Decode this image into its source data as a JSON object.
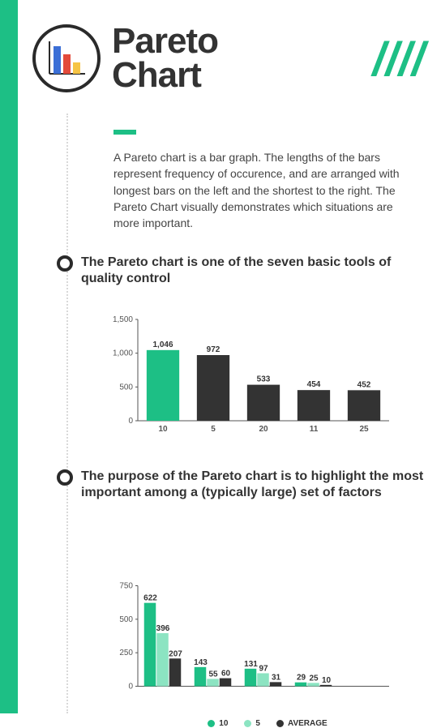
{
  "header": {
    "title_line1": "Pareto",
    "title_line2": "Chart",
    "slashes": "////",
    "logo_bars": [
      {
        "color": "#3b6fd6",
        "h": 34
      },
      {
        "color": "#e34a3b",
        "h": 24
      },
      {
        "color": "#f6c445",
        "h": 14
      }
    ]
  },
  "colors": {
    "accent": "#1dbf85",
    "accent_light": "#8ce4c2",
    "dark": "#2a2a2a",
    "text": "#444444",
    "bar_dark": "#333333"
  },
  "intro": {
    "text": "A Pareto chart is a bar graph. The lengths of the bars represent frequency of occurence, and are arranged with longest bars on the left and the shortest to the right. The Pareto Chart visually demonstrates which situations are more important."
  },
  "section1": {
    "title": "The Pareto chart is one of the seven basic tools of quality control",
    "chart": {
      "type": "bar",
      "ylim": [
        0,
        1500
      ],
      "ytick_step": 500,
      "categories": [
        "10",
        "5",
        "20",
        "11",
        "25"
      ],
      "values": [
        1046,
        972,
        533,
        454,
        452
      ],
      "value_labels": [
        "1,046",
        "972",
        "533",
        "454",
        "452"
      ],
      "bar_colors": [
        "#1dbf85",
        "#333333",
        "#333333",
        "#333333",
        "#333333"
      ],
      "bar_width": 0.65,
      "label_fontsize": 10
    }
  },
  "section2": {
    "title": "The purpose of the Pareto chart is to highlight the most important among a (typically large) set of factors",
    "chart": {
      "type": "grouped-bar",
      "ylim": [
        0,
        750
      ],
      "ytick_step": 250,
      "groups": 5,
      "series": [
        {
          "name": "10",
          "color": "#1dbf85",
          "values": [
            622,
            143,
            131,
            29,
            0
          ]
        },
        {
          "name": "5",
          "color": "#8ce4c2",
          "values": [
            396,
            55,
            97,
            25,
            0
          ]
        },
        {
          "name": "AVERAGE",
          "color": "#333333",
          "values": [
            207,
            60,
            31,
            10,
            0
          ]
        }
      ],
      "value_labels": [
        [
          "622",
          "143",
          "131",
          "29",
          ""
        ],
        [
          "396",
          "55",
          "97",
          "25",
          ""
        ],
        [
          "207",
          "60",
          "31",
          "10",
          ""
        ]
      ],
      "bar_width": 0.25,
      "label_fontsize": 10
    },
    "legend": [
      "10",
      "5",
      "AVERAGE"
    ],
    "legend_colors": [
      "#1dbf85",
      "#8ce4c2",
      "#333333"
    ]
  }
}
